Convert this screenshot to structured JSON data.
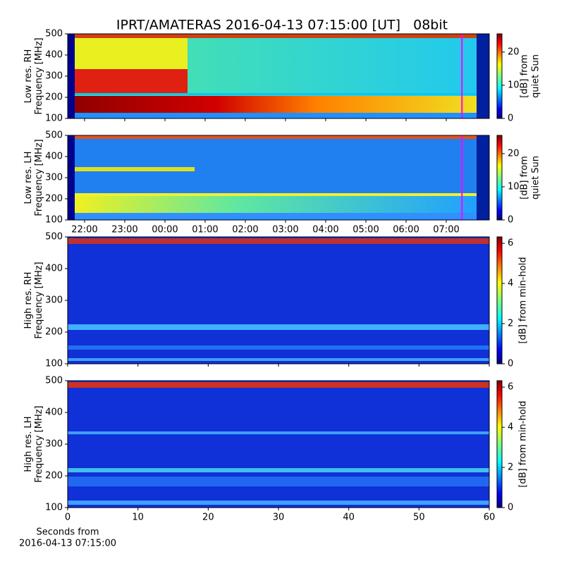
{
  "chart_data": [
    {
      "type": "heatmap",
      "title": "IPRT/AMATERAS 2016-04-13 07:15:00 [UT]   08bit",
      "ylabel": [
        "Low res. RH",
        "Frequency [MHz]"
      ],
      "ylim": [
        100,
        500
      ],
      "yticks": [
        100,
        200,
        300,
        400,
        500
      ],
      "sharex": 1,
      "vline_x": 31.39,
      "vline_color": "#ff00ff",
      "colorbar_label": [
        "[dB] from",
        "quiet Sun"
      ],
      "clim": [
        0,
        25.5
      ],
      "cticks": [
        0,
        10,
        20
      ],
      "colormap": "jet"
    },
    {
      "type": "heatmap",
      "ylabel": [
        "Low res. LH",
        "Frequency [MHz]"
      ],
      "ylim": [
        100,
        500
      ],
      "yticks": [
        100,
        200,
        300,
        400,
        500
      ],
      "xlim": [
        21.58,
        32.07
      ],
      "xticks": [
        {
          "value": 22,
          "label": "22:00"
        },
        {
          "value": 23,
          "label": "23:00"
        },
        {
          "value": 24,
          "label": "00:00"
        },
        {
          "value": 25,
          "label": "01:00"
        },
        {
          "value": 26,
          "label": "02:00"
        },
        {
          "value": 27,
          "label": "03:00"
        },
        {
          "value": 28,
          "label": "04:00"
        },
        {
          "value": 29,
          "label": "05:00"
        },
        {
          "value": 30,
          "label": "06:00"
        },
        {
          "value": 31,
          "label": "07:00"
        }
      ],
      "vline_x": 31.39,
      "vline_color": "#ff00ff",
      "colorbar_label": [
        "[dB] from",
        "quiet Sun"
      ],
      "clim": [
        0,
        25.5
      ],
      "cticks": [
        0,
        10,
        20
      ],
      "colormap": "jet"
    },
    {
      "type": "heatmap",
      "ylabel": [
        "High res. RH",
        "Frequency [MHz]"
      ],
      "ylim": [
        100,
        500
      ],
      "yticks": [
        100,
        200,
        300,
        400,
        500
      ],
      "sharex": 3,
      "colorbar_label": [
        "[dB] from min-hold"
      ],
      "clim": [
        0,
        6.32
      ],
      "cticks": [
        0,
        2,
        4,
        6
      ],
      "colormap": "jet"
    },
    {
      "type": "heatmap",
      "ylabel": [
        "High res. LH",
        "Frequency [MHz]"
      ],
      "ylim": [
        100,
        500
      ],
      "yticks": [
        100,
        200,
        300,
        400,
        500
      ],
      "xlim": [
        0,
        60
      ],
      "xticks": [
        0,
        10,
        20,
        30,
        40,
        50,
        60
      ],
      "xlabel": [
        "Seconds from",
        "2016-04-13 07:15:00"
      ],
      "colorbar_label": [
        "[dB] from min-hold"
      ],
      "clim": [
        0,
        6.32
      ],
      "cticks": [
        0,
        2,
        4,
        6
      ],
      "colormap": "jet"
    }
  ]
}
